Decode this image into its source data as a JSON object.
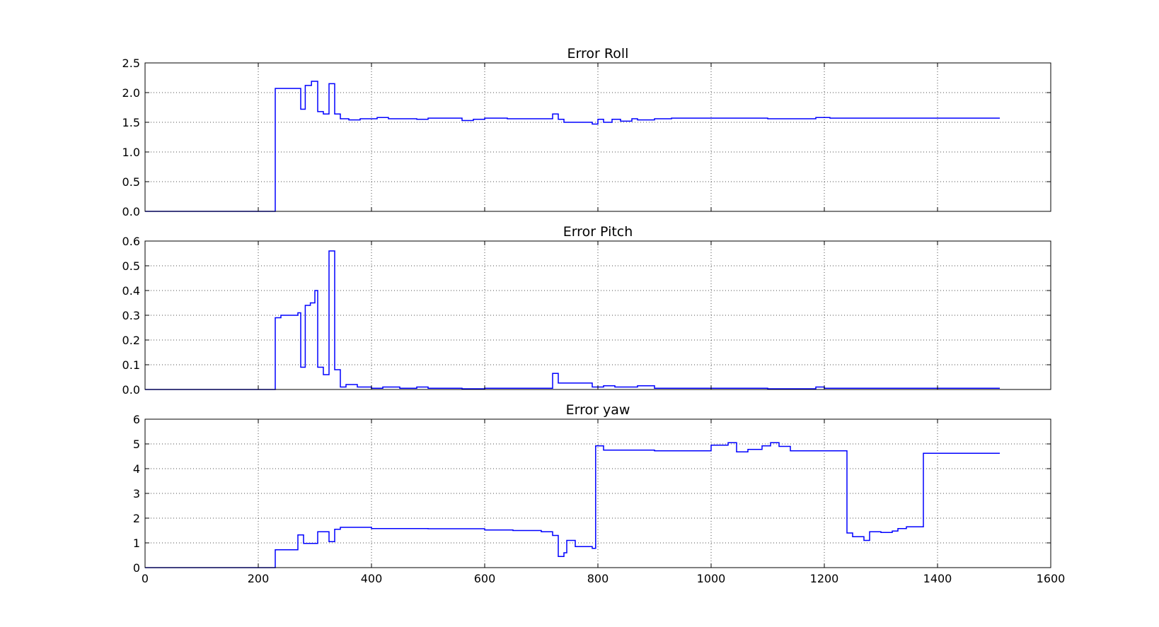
{
  "chart_data": [
    {
      "type": "line",
      "title": "Error Roll",
      "xlim": [
        0,
        1600
      ],
      "ylim": [
        0,
        2.5
      ],
      "xticks": [
        0,
        200,
        400,
        600,
        800,
        1000,
        1200,
        1400,
        1600
      ],
      "yticks": [
        "0.0",
        "0.5",
        "1.0",
        "1.5",
        "2.0",
        "2.5"
      ],
      "show_x_tick_labels": false,
      "grid": true,
      "line_color": "#0000ff",
      "series": [
        {
          "x": [
            0,
            230,
            230,
            275,
            275,
            283,
            283,
            294,
            294,
            305,
            305,
            315,
            315,
            325,
            325,
            335,
            335,
            345,
            345,
            360,
            360,
            380,
            380,
            410,
            410,
            430,
            430,
            480,
            480,
            500,
            500,
            560,
            560,
            580,
            580,
            600,
            600,
            640,
            640,
            720,
            720,
            730,
            730,
            740,
            740,
            790,
            790,
            800,
            800,
            810,
            810,
            825,
            825,
            840,
            840,
            860,
            860,
            870,
            870,
            900,
            900,
            930,
            930,
            1100,
            1100,
            1185,
            1185,
            1210,
            1210,
            1510
          ],
          "y": [
            0,
            0,
            2.07,
            2.07,
            1.72,
            1.72,
            2.12,
            2.12,
            2.19,
            2.19,
            1.68,
            1.68,
            1.64,
            1.64,
            2.15,
            2.15,
            1.64,
            1.64,
            1.56,
            1.56,
            1.54,
            1.54,
            1.56,
            1.56,
            1.58,
            1.58,
            1.56,
            1.56,
            1.55,
            1.55,
            1.57,
            1.57,
            1.53,
            1.53,
            1.55,
            1.55,
            1.57,
            1.57,
            1.56,
            1.56,
            1.64,
            1.64,
            1.55,
            1.55,
            1.5,
            1.5,
            1.47,
            1.47,
            1.55,
            1.55,
            1.5,
            1.5,
            1.55,
            1.55,
            1.52,
            1.52,
            1.56,
            1.56,
            1.54,
            1.54,
            1.56,
            1.56,
            1.57,
            1.57,
            1.56,
            1.56,
            1.58,
            1.58,
            1.57,
            1.57
          ]
        }
      ]
    },
    {
      "type": "line",
      "title": "Error Pitch",
      "xlim": [
        0,
        1600
      ],
      "ylim": [
        0,
        0.6
      ],
      "xticks": [
        0,
        200,
        400,
        600,
        800,
        1000,
        1200,
        1400,
        1600
      ],
      "yticks": [
        "0.0",
        "0.1",
        "0.2",
        "0.3",
        "0.4",
        "0.5",
        "0.6"
      ],
      "show_x_tick_labels": false,
      "grid": true,
      "line_color": "#0000ff",
      "series": [
        {
          "x": [
            0,
            230,
            230,
            240,
            240,
            270,
            270,
            275,
            275,
            283,
            283,
            292,
            292,
            300,
            300,
            305,
            305,
            315,
            315,
            325,
            325,
            335,
            335,
            345,
            345,
            355,
            355,
            375,
            375,
            400,
            400,
            420,
            420,
            450,
            450,
            480,
            480,
            500,
            500,
            560,
            560,
            600,
            600,
            720,
            720,
            730,
            730,
            790,
            790,
            810,
            810,
            830,
            830,
            870,
            870,
            900,
            900,
            1100,
            1100,
            1185,
            1185,
            1200,
            1200,
            1510
          ],
          "y": [
            0,
            0,
            0.29,
            0.29,
            0.3,
            0.3,
            0.31,
            0.31,
            0.09,
            0.09,
            0.34,
            0.34,
            0.35,
            0.35,
            0.4,
            0.4,
            0.09,
            0.09,
            0.06,
            0.06,
            0.56,
            0.56,
            0.08,
            0.08,
            0.01,
            0.01,
            0.02,
            0.02,
            0.01,
            0.01,
            0.005,
            0.005,
            0.01,
            0.01,
            0.005,
            0.005,
            0.01,
            0.01,
            0.005,
            0.005,
            0.003,
            0.003,
            0.005,
            0.005,
            0.065,
            0.065,
            0.026,
            0.026,
            0.01,
            0.01,
            0.015,
            0.015,
            0.01,
            0.01,
            0.015,
            0.015,
            0.005,
            0.005,
            0.003,
            0.003,
            0.01,
            0.01,
            0.005,
            0.005
          ]
        }
      ]
    },
    {
      "type": "line",
      "title": "Error yaw",
      "xlim": [
        0,
        1600
      ],
      "ylim": [
        0,
        6
      ],
      "xticks": [
        0,
        200,
        400,
        600,
        800,
        1000,
        1200,
        1400,
        1600
      ],
      "yticks": [
        "0",
        "1",
        "2",
        "3",
        "4",
        "5",
        "6"
      ],
      "show_x_tick_labels": true,
      "grid": true,
      "line_color": "#0000ff",
      "series": [
        {
          "x": [
            0,
            230,
            230,
            270,
            270,
            280,
            280,
            305,
            305,
            325,
            325,
            335,
            335,
            345,
            345,
            400,
            400,
            500,
            500,
            600,
            600,
            650,
            650,
            700,
            700,
            720,
            720,
            730,
            730,
            740,
            740,
            745,
            745,
            760,
            760,
            790,
            790,
            796,
            796,
            810,
            810,
            900,
            900,
            1000,
            1000,
            1030,
            1030,
            1045,
            1045,
            1065,
            1065,
            1090,
            1090,
            1105,
            1105,
            1120,
            1120,
            1140,
            1140,
            1240,
            1240,
            1250,
            1250,
            1270,
            1270,
            1280,
            1280,
            1300,
            1300,
            1320,
            1320,
            1330,
            1330,
            1345,
            1345,
            1375,
            1375,
            1510
          ],
          "y": [
            0,
            0,
            0.72,
            0.72,
            1.32,
            1.32,
            0.98,
            0.98,
            1.45,
            1.45,
            1.05,
            1.05,
            1.55,
            1.55,
            1.63,
            1.63,
            1.58,
            1.58,
            1.57,
            1.57,
            1.52,
            1.52,
            1.5,
            1.5,
            1.45,
            1.45,
            1.3,
            1.3,
            0.45,
            0.45,
            0.6,
            0.6,
            1.1,
            1.1,
            0.85,
            0.85,
            0.78,
            0.78,
            4.92,
            4.92,
            4.75,
            4.75,
            4.72,
            4.72,
            4.95,
            4.95,
            5.05,
            5.05,
            4.68,
            4.68,
            4.78,
            4.78,
            4.92,
            4.92,
            5.05,
            5.05,
            4.9,
            4.9,
            4.72,
            4.72,
            1.4,
            1.4,
            1.25,
            1.25,
            1.1,
            1.1,
            1.45,
            1.45,
            1.42,
            1.42,
            1.48,
            1.48,
            1.58,
            1.58,
            1.65,
            1.65,
            4.62,
            4.62
          ]
        }
      ]
    }
  ]
}
